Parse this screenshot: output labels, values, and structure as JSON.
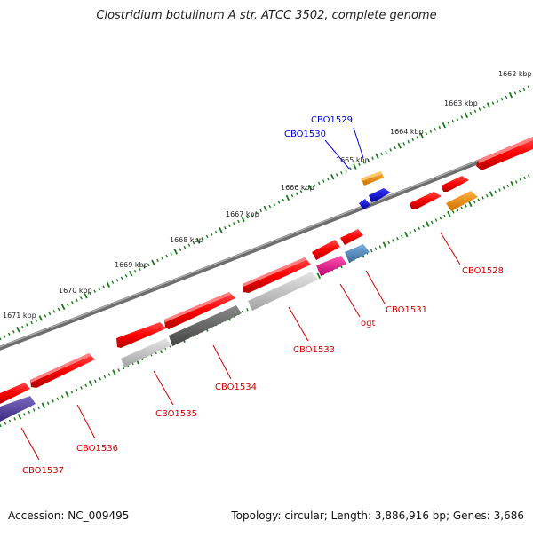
{
  "title": "Clostridium botulinum A str. ATCC 3502, complete genome",
  "accession": "Accession: NC_009495",
  "topology": "Topology: circular; Length: 3,886,916 bp; Genes: 3,686",
  "colors": {
    "backbone": "#7f7f7f",
    "tick": "#1a7a1a",
    "gene_label": "#cc0000",
    "gene_label_highlight": "#0000cc",
    "leader_red": "#cc0000",
    "leader_blue": "#0000cc"
  },
  "kbp_labels": [
    "1662 kbp",
    "1663 kbp",
    "1664 kbp",
    "1665 kbp",
    "1666 kbp",
    "1667 kbp",
    "1668 kbp",
    "1669 kbp",
    "1670 kbp",
    "1671 kbp"
  ],
  "gene_labels": [
    {
      "id": "CBO1529",
      "text": "CBO1529",
      "highlight": true
    },
    {
      "id": "CBO1530",
      "text": "CBO1530",
      "highlight": true
    },
    {
      "id": "CBO1528",
      "text": "CBO1528",
      "highlight": false
    },
    {
      "id": "CBO1531",
      "text": "CBO1531",
      "highlight": false
    },
    {
      "id": "ogt",
      "text": "ogt",
      "highlight": false
    },
    {
      "id": "CBO1533",
      "text": "CBO1533",
      "highlight": false
    },
    {
      "id": "CBO1534",
      "text": "CBO1534",
      "highlight": false
    },
    {
      "id": "CBO1535",
      "text": "CBO1535",
      "highlight": false
    },
    {
      "id": "CBO1536",
      "text": "CBO1536",
      "highlight": false
    },
    {
      "id": "CBO1537",
      "text": "CBO1537",
      "highlight": false
    }
  ]
}
